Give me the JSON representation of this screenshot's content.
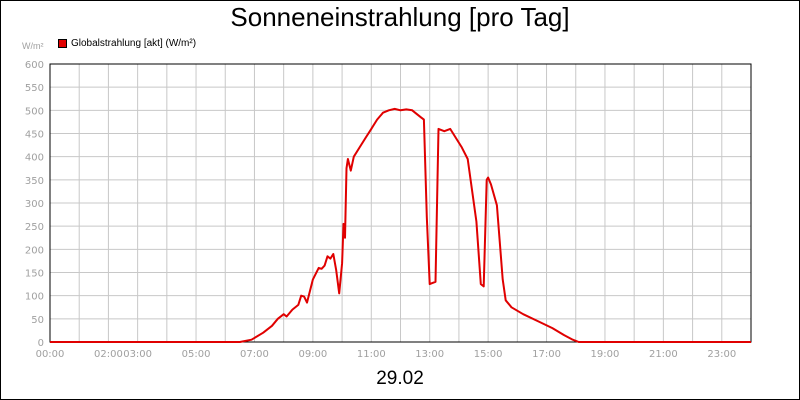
{
  "chart_data": {
    "type": "line",
    "title": "Sonneneinstrahlung [pro Tag]",
    "xlabel": "29.02",
    "ylabel": "W/m²",
    "ylim": [
      0,
      600
    ],
    "xlim": [
      0,
      24
    ],
    "y_ticks": [
      0,
      50,
      100,
      150,
      200,
      250,
      300,
      350,
      400,
      450,
      500,
      550,
      600
    ],
    "y_tick_labels": [
      "0",
      "50",
      "100",
      "150",
      "200",
      "250",
      "300",
      "350",
      "400",
      "450",
      "500",
      "550",
      "600"
    ],
    "x_ticks": [
      {
        "hour": 0,
        "label": "00:00"
      },
      {
        "hour": 2,
        "label": "02:00"
      },
      {
        "hour": 3,
        "label": "03:00"
      },
      {
        "hour": 5,
        "label": "05:00"
      },
      {
        "hour": 7,
        "label": "07:00"
      },
      {
        "hour": 9,
        "label": "09:00"
      },
      {
        "hour": 11,
        "label": "11:00"
      },
      {
        "hour": 13,
        "label": "13:00"
      },
      {
        "hour": 15,
        "label": "15:00"
      },
      {
        "hour": 17,
        "label": "17:00"
      },
      {
        "hour": 19,
        "label": "19:00"
      },
      {
        "hour": 21,
        "label": "21:00"
      },
      {
        "hour": 23,
        "label": "23:00"
      }
    ],
    "grid": true,
    "legend_position": "top-left",
    "series": [
      {
        "name": "Globalstrahlung [akt] (W/m²)",
        "color": "#e00000",
        "x": [
          0.0,
          6.5,
          6.9,
          7.3,
          7.6,
          7.8,
          8.0,
          8.1,
          8.3,
          8.5,
          8.6,
          8.7,
          8.8,
          9.0,
          9.2,
          9.3,
          9.4,
          9.5,
          9.6,
          9.7,
          9.8,
          9.9,
          10.0,
          10.05,
          10.1,
          10.15,
          10.2,
          10.3,
          10.4,
          10.6,
          10.8,
          11.0,
          11.2,
          11.4,
          11.6,
          11.8,
          12.0,
          12.2,
          12.4,
          12.5,
          12.7,
          12.8,
          12.9,
          13.0,
          13.2,
          13.3,
          13.5,
          13.7,
          13.9,
          14.1,
          14.3,
          14.6,
          14.75,
          14.85,
          14.95,
          15.0,
          15.1,
          15.3,
          15.5,
          15.6,
          15.8,
          16.2,
          16.7,
          17.2,
          17.6,
          17.9,
          18.1,
          18.3,
          24.0
        ],
        "values": [
          0,
          0,
          5,
          20,
          35,
          50,
          60,
          55,
          70,
          80,
          100,
          98,
          85,
          135,
          160,
          158,
          165,
          185,
          180,
          190,
          155,
          105,
          170,
          255,
          225,
          375,
          395,
          370,
          400,
          420,
          440,
          460,
          480,
          495,
          500,
          503,
          500,
          502,
          500,
          495,
          485,
          480,
          270,
          125,
          130,
          460,
          455,
          460,
          440,
          420,
          395,
          260,
          125,
          120,
          350,
          355,
          340,
          295,
          135,
          90,
          75,
          60,
          45,
          30,
          15,
          5,
          0,
          0,
          0
        ]
      }
    ]
  }
}
